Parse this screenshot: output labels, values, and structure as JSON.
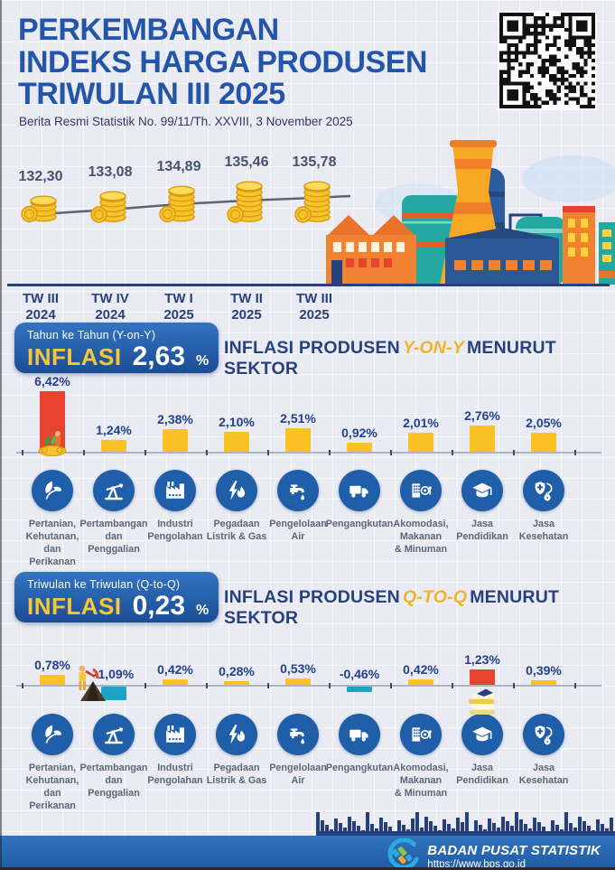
{
  "header": {
    "title_line1": "PERKEMBANGAN",
    "title_line2": "INDEKS HARGA PRODUSEN",
    "title_line3": "TRIWULAN III 2025",
    "subtitle": "Berita Resmi Statistik No. 99/11/Th. XXVIII, 3 November 2025"
  },
  "colors": {
    "background": "#E9EAF2",
    "title_blue": "#2356A8",
    "navy": "#27417F",
    "bar_yellow": "#FBC226",
    "bar_red": "#E8432E",
    "bar_teal": "#1FA3C5",
    "icon_circle_blue": "#1F5FA9",
    "badge_blue_top": "#3374C1",
    "badge_blue_bottom": "#1B4D95",
    "accent_yellow": "#F0B429",
    "footer_blue": "#2E6DB8"
  },
  "chart_data": [
    {
      "type": "line",
      "title": "Indeks Harga Produsen per Triwulan",
      "categories": [
        "TW III 2024",
        "TW IV 2024",
        "TW I 2025",
        "TW II 2025",
        "TW III 2025"
      ],
      "category_lines": [
        [
          "TW III",
          "2024"
        ],
        [
          "TW IV",
          "2024"
        ],
        [
          "TW I",
          "2025"
        ],
        [
          "TW II",
          "2025"
        ],
        [
          "TW III",
          "2025"
        ]
      ],
      "values": [
        132.3,
        133.08,
        134.89,
        135.46,
        135.78
      ],
      "display_values": [
        "132,30",
        "133,08",
        "134,89",
        "135,46",
        "135,78"
      ],
      "legend_position": "none",
      "grid": false
    },
    {
      "type": "bar",
      "title": "Inflasi Produsen Y-on-Y Menurut Sektor",
      "unit": "%",
      "categories": [
        "Pertanian, Kehutanan, dan Perikanan",
        "Pertambangan dan Penggalian",
        "Industri Pengolahan",
        "Pegadaan Listrik & Gas",
        "Pengelolaan Air",
        "Pengangkutan",
        "Akomodasi, Makanan & Minuman",
        "Jasa Pendidikan",
        "Jasa Kesehatan"
      ],
      "values": [
        6.42,
        1.24,
        2.38,
        2.1,
        2.51,
        0.92,
        2.01,
        2.76,
        2.05
      ],
      "labels": [
        "6,42%",
        "1,24%",
        "2,38%",
        "2,10%",
        "2,51%",
        "0,92%",
        "2,01%",
        "2,76%",
        "2,05%"
      ],
      "colors": [
        "#E8432E",
        "#FBC226",
        "#FBC226",
        "#FBC226",
        "#FBC226",
        "#FBC226",
        "#FBC226",
        "#FBC226",
        "#FBC226"
      ],
      "decorations": {
        "0": "farmer-harvest-illustration"
      },
      "ylim": [
        0,
        7
      ],
      "grid": false
    },
    {
      "type": "bar",
      "title": "Inflasi Produsen Q-to-Q Menurut Sektor",
      "unit": "%",
      "categories": [
        "Pertanian, Kehutanan, dan Perikanan",
        "Pertambangan dan Penggalian",
        "Industri Pengolahan",
        "Pegadaan Listrik & Gas",
        "Pengelolaan Air",
        "Pengangkutan",
        "Akomodasi, Makanan & Minuman",
        "Jasa Pendidikan",
        "Jasa Kesehatan"
      ],
      "values": [
        0.78,
        -1.09,
        0.42,
        0.28,
        0.53,
        -0.46,
        0.42,
        1.23,
        0.39
      ],
      "labels": [
        "0,78%",
        "-1,09%",
        "0,42%",
        "0,28%",
        "0,53%",
        "-0,46%",
        "0,42%",
        "1,23%",
        "0,39%"
      ],
      "colors": [
        "#FBC226",
        "#1FA3C5",
        "#FBC226",
        "#FBC226",
        "#FBC226",
        "#1FA3C5",
        "#FBC226",
        "#E8432E",
        "#FBC226"
      ],
      "decorations": {
        "1": "miner-illustration",
        "7": "books-illustration"
      },
      "ylim": [
        -1.5,
        1.5
      ],
      "grid": false
    }
  ],
  "yoy": {
    "badge": {
      "caption": "Tahun ke Tahun (Y-on-Y)",
      "label": "INFLASI",
      "value": "2,63",
      "unit": "%"
    },
    "heading": {
      "pre": "INFLASI PRODUSEN",
      "highlight": "Y-ON-Y",
      "post": "MENURUT SEKTOR"
    }
  },
  "qtq": {
    "badge": {
      "caption": "Triwulan ke Triwulan (Q-to-Q)",
      "label": "INFLASI",
      "value": "0,23",
      "unit": "%"
    },
    "heading": {
      "pre": "INFLASI PRODUSEN",
      "highlight": "Q-TO-Q",
      "post": "MENURUT SEKTOR"
    }
  },
  "sectors": [
    {
      "id": "agriculture",
      "icon": "leaf-icon",
      "lines": [
        "Pertanian,",
        "Kehutanan, dan",
        "Perikanan"
      ]
    },
    {
      "id": "mining",
      "icon": "oil-pump-icon",
      "lines": [
        "Pertambangan",
        "dan",
        "Penggalian"
      ]
    },
    {
      "id": "manufacturing",
      "icon": "factory-icon",
      "lines": [
        "Industri",
        "Pengolahan"
      ]
    },
    {
      "id": "electricity-gas",
      "icon": "electricity-gas-icon",
      "lines": [
        "Pegadaan",
        "Listrik & Gas"
      ]
    },
    {
      "id": "water",
      "icon": "water-tap-icon",
      "lines": [
        "Pengelolaan",
        "Air"
      ]
    },
    {
      "id": "transport",
      "icon": "truck-icon",
      "lines": [
        "Pengangkutan"
      ]
    },
    {
      "id": "accommodation-food",
      "icon": "building-dining-icon",
      "lines": [
        "Akomodasi,",
        "Makanan",
        "& Minuman"
      ]
    },
    {
      "id": "education",
      "icon": "graduation-cap-icon",
      "lines": [
        "Jasa",
        "Pendidikan"
      ]
    },
    {
      "id": "health",
      "icon": "stethoscope-icon",
      "lines": [
        "Jasa",
        "Kesehatan"
      ]
    }
  ],
  "footer": {
    "org": "BADAN PUSAT STATISTIK",
    "url": "https://www.bps.go.id"
  }
}
